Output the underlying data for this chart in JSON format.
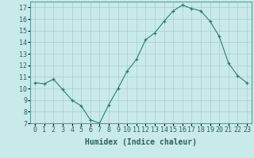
{
  "xlabel": "Humidex (Indice chaleur)",
  "ylabel": "",
  "x": [
    0,
    1,
    2,
    3,
    4,
    5,
    6,
    7,
    8,
    9,
    10,
    11,
    12,
    13,
    14,
    15,
    16,
    17,
    18,
    19,
    20,
    21,
    22,
    23
  ],
  "y": [
    10.5,
    10.4,
    10.8,
    9.9,
    9.0,
    8.5,
    7.3,
    7.0,
    8.6,
    10.0,
    11.5,
    12.5,
    14.2,
    14.8,
    15.8,
    16.7,
    17.2,
    16.9,
    16.7,
    15.8,
    14.5,
    12.2,
    11.1,
    10.5
  ],
  "line_color": "#2e7d6e",
  "marker": "+",
  "bg_color": "#c8eaea",
  "grid_color": "#aacccc",
  "ylim": [
    7,
    17.5
  ],
  "yticks": [
    7,
    8,
    9,
    10,
    11,
    12,
    13,
    14,
    15,
    16,
    17
  ],
  "xticks": [
    0,
    1,
    2,
    3,
    4,
    5,
    6,
    7,
    8,
    9,
    10,
    11,
    12,
    13,
    14,
    15,
    16,
    17,
    18,
    19,
    20,
    21,
    22,
    23
  ],
  "tick_fontsize": 6,
  "xlabel_fontsize": 7,
  "title_fontsize": 7
}
